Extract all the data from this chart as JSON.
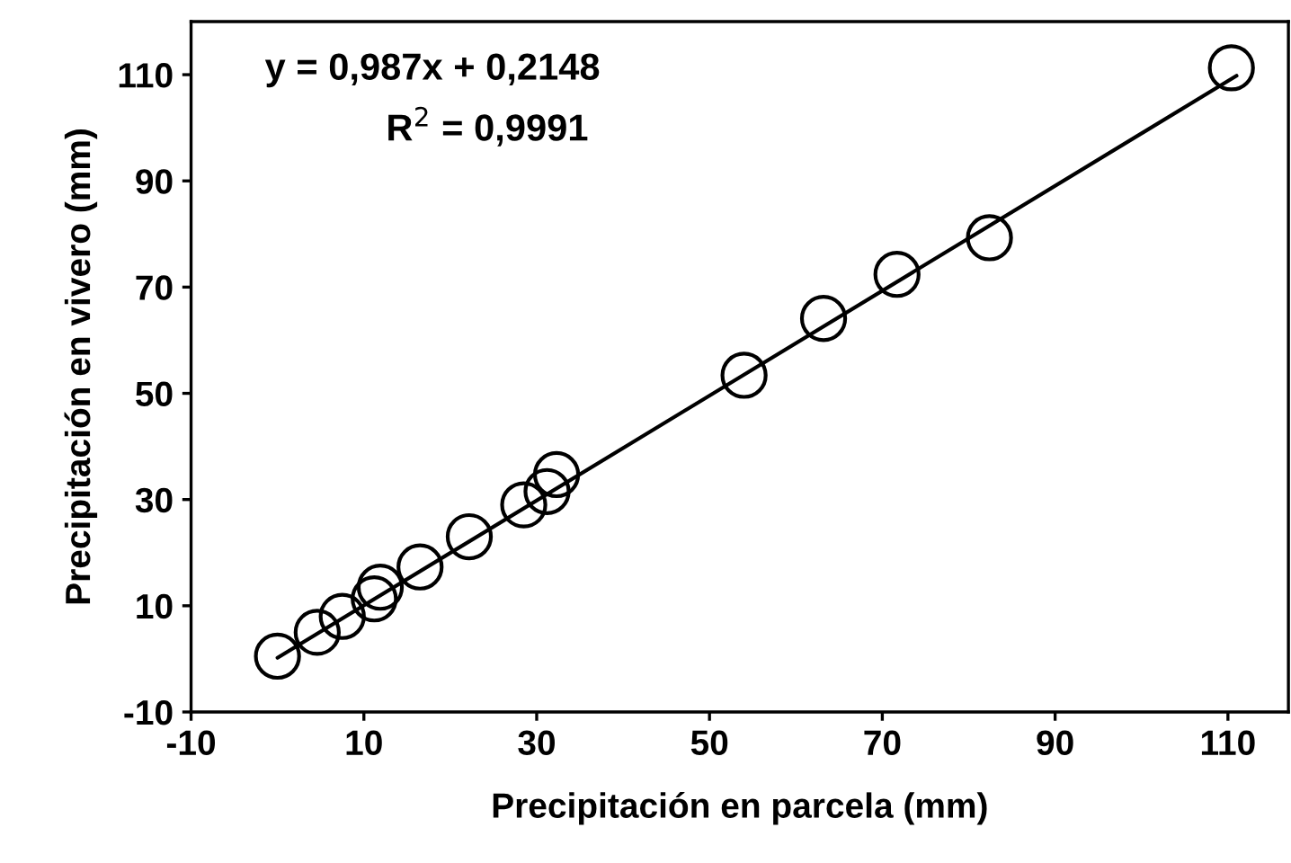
{
  "chart_data": {
    "type": "scatter",
    "xlabel": "Precipitación en parcela (mm)",
    "ylabel": "Precipitación en vivero (mm)",
    "xlim": [
      -10,
      117
    ],
    "ylim": [
      -10,
      120
    ],
    "xticks": [
      -10,
      10,
      30,
      50,
      70,
      90,
      110
    ],
    "yticks": [
      -10,
      10,
      30,
      50,
      70,
      90,
      110
    ],
    "grid": false,
    "annotations": [
      "y = 0,987x + 0,2148",
      "R$^{2}$ = 0,9991"
    ],
    "series": [
      {
        "marker": "circle",
        "color": "#000000",
        "x": [
          0,
          4.6,
          7.5,
          11.2,
          11.9,
          16.5,
          22.2,
          28.5,
          31.2,
          32.3,
          54,
          63.2,
          71.7,
          82.4,
          110.4
        ],
        "values": [
          0.5,
          5,
          8,
          11.3,
          13.5,
          17.3,
          23,
          29,
          31.5,
          34.7,
          53.4,
          64.1,
          72.4,
          79.3,
          111.3
        ]
      },
      {
        "type": "line",
        "color": "#000000",
        "x": [
          0,
          111
        ],
        "values": [
          0.2,
          109.8
        ]
      }
    ]
  }
}
